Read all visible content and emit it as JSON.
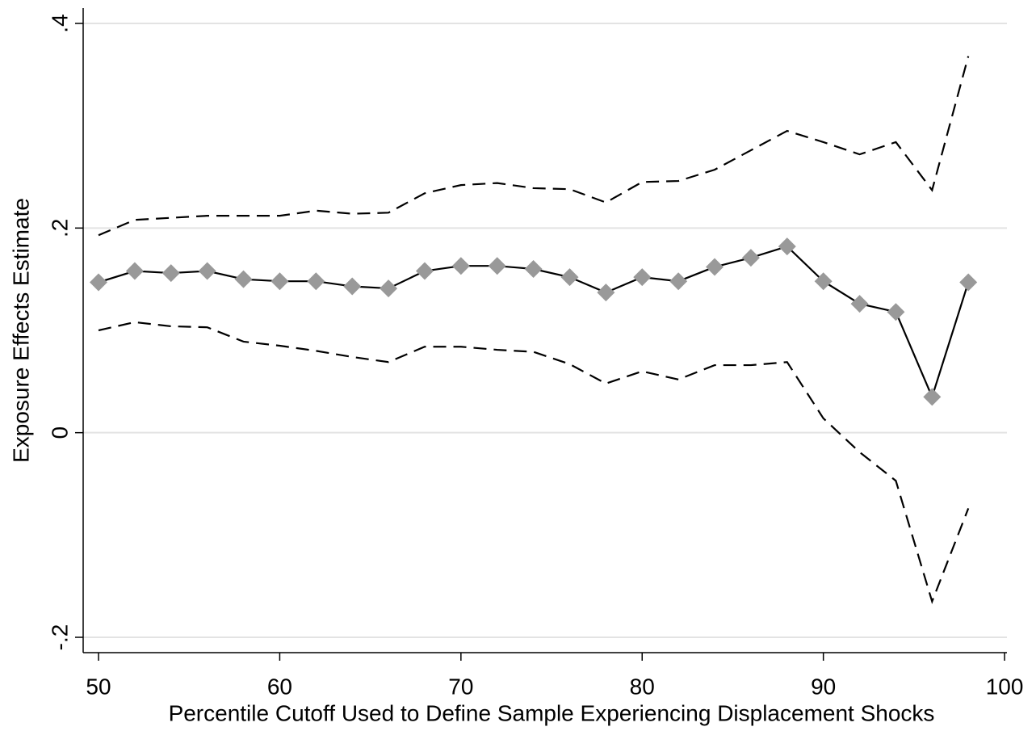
{
  "chart_data": {
    "type": "line",
    "x_label": "Percentile Cutoff Used to Define Sample Experiencing Displacement Shocks",
    "y_label": "Exposure Effects Estimate",
    "x": [
      50,
      52,
      54,
      56,
      58,
      60,
      62,
      64,
      66,
      68,
      70,
      72,
      74,
      76,
      78,
      80,
      82,
      84,
      86,
      88,
      90,
      92,
      94,
      96,
      98
    ],
    "series": [
      {
        "color": "#000000",
        "dash": false,
        "marker": "diamond",
        "marker_color": "#999999",
        "values": [
          0.147,
          0.158,
          0.156,
          0.158,
          0.15,
          0.148,
          0.148,
          0.143,
          0.141,
          0.158,
          0.163,
          0.163,
          0.16,
          0.152,
          0.137,
          0.152,
          0.148,
          0.162,
          0.171,
          0.182,
          0.148,
          0.126,
          0.118,
          0.035,
          0.147
        ]
      },
      {
        "color": "#000000",
        "dash": true,
        "values": [
          0.193,
          0.208,
          0.21,
          0.212,
          0.212,
          0.212,
          0.217,
          0.214,
          0.215,
          0.234,
          0.242,
          0.244,
          0.239,
          0.238,
          0.225,
          0.245,
          0.246,
          0.257,
          0.276,
          0.295,
          0.284,
          0.272,
          0.284,
          0.237,
          0.368
        ]
      },
      {
        "color": "#000000",
        "dash": true,
        "values": [
          0.1,
          0.108,
          0.104,
          0.103,
          0.089,
          0.085,
          0.08,
          0.074,
          0.069,
          0.084,
          0.084,
          0.081,
          0.079,
          0.067,
          0.048,
          0.06,
          0.052,
          0.066,
          0.066,
          0.069,
          0.014,
          -0.019,
          -0.047,
          -0.165,
          -0.074
        ]
      }
    ],
    "xlim": [
      49.153,
      100.13
    ],
    "xticks": [
      50,
      60,
      70,
      80,
      90,
      100
    ],
    "ylim": [
      -0.215,
      0.415
    ],
    "yticks": [
      {
        "value": -0.2,
        "label": "-.2"
      },
      0,
      {
        "value": 0.2,
        "label": ".2"
      },
      {
        "value": 0.4,
        "label": ".4"
      }
    ],
    "grid": true
  }
}
